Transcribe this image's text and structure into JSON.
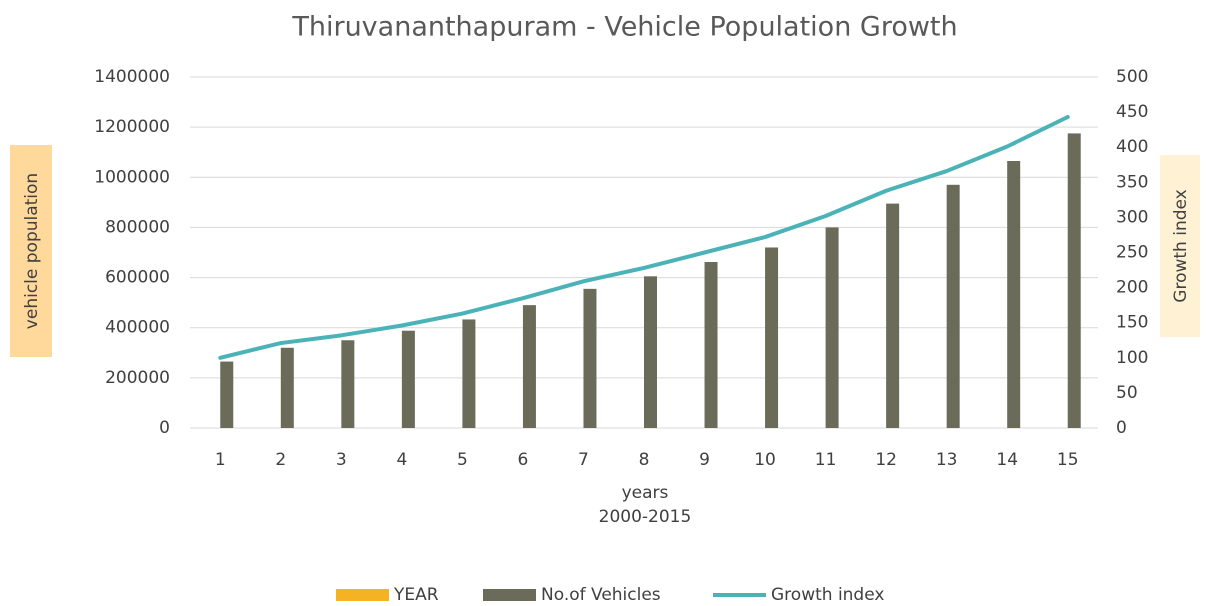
{
  "chart_data": {
    "type": "bar_line",
    "title": "Thiruvananthapuram - Vehicle Population Growth",
    "ylabel": "vehicle population",
    "y2label": "Growth index",
    "xlabel_lines": [
      "years",
      "2000-2015"
    ],
    "categories": [
      "1",
      "2",
      "3",
      "4",
      "5",
      "6",
      "7",
      "8",
      "9",
      "10",
      "11",
      "12",
      "13",
      "14",
      "15"
    ],
    "series": [
      {
        "name": "YEAR",
        "color": "#f5b324",
        "type": "bar",
        "values": [
          null,
          null,
          null,
          null,
          null,
          null,
          null,
          null,
          null,
          null,
          null,
          null,
          null,
          null,
          null
        ]
      },
      {
        "name": "No.of Vehicles",
        "color": "#6b6b5a",
        "type": "bar",
        "values": [
          265000,
          320000,
          350000,
          388000,
          433000,
          490000,
          555000,
          605000,
          662000,
          720000,
          800000,
          895000,
          970000,
          1065000,
          1175000
        ]
      },
      {
        "name": "Growth index",
        "color": "#4bb3b8",
        "type": "line",
        "axis": "y2",
        "values": [
          100,
          121,
          132,
          146,
          163,
          185,
          209,
          228,
          250,
          272,
          302,
          338,
          366,
          401,
          443
        ]
      }
    ],
    "ylim": [
      0,
      1400000
    ],
    "yticks": [
      0,
      200000,
      400000,
      600000,
      800000,
      1000000,
      1200000,
      1400000
    ],
    "y2lim": [
      0,
      500
    ],
    "y2ticks": [
      0,
      50,
      100,
      150,
      200,
      250,
      300,
      350,
      400,
      450,
      500
    ],
    "grid": true,
    "legend": "bottom"
  }
}
